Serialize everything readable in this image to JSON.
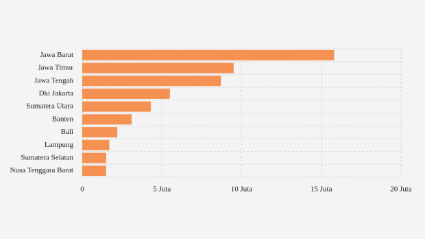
{
  "chart_data": {
    "type": "hbar",
    "categories": [
      "Jawa Barat",
      "Jawa Timur",
      "Jawa Tengah",
      "Dki Jakarta",
      "Sumatera Utara",
      "Banten",
      "Bali",
      "Lampung",
      "Sumatera Selatan",
      "Nusa Tenggara Barat"
    ],
    "values": [
      15.8,
      9.5,
      8.7,
      5.5,
      4.3,
      3.1,
      2.2,
      1.7,
      1.5,
      1.5
    ],
    "color": "#f59152",
    "xlim": [
      0,
      20
    ],
    "xticks": [
      0,
      {
        "value": 5,
        "label": "5 Juta"
      },
      {
        "value": 10,
        "label": "10 Juta"
      },
      {
        "value": 15,
        "label": "15 Juta"
      },
      {
        "value": 20,
        "label": "20 Juta"
      }
    ],
    "grid": true
  }
}
